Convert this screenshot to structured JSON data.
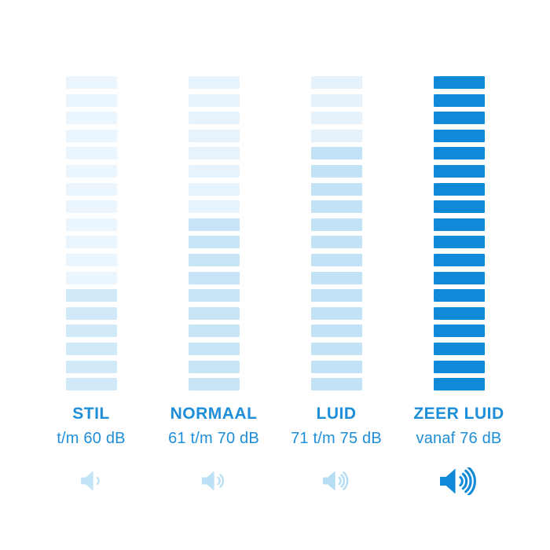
{
  "title": "Geluidsniveau schaal (volume infographic)",
  "accent_color": "#1189d9",
  "text_color": "#1e8ed9",
  "icon_light_color": "#bfe0f5",
  "chart_data": {
    "type": "bar",
    "subtype": "pictogram-volume-scale",
    "orientation": "vertical-stacked-segments",
    "segments_per_column": 18,
    "categories": [
      "STIL",
      "NORMAAL",
      "LUID",
      "ZEER LUID"
    ],
    "ranges": [
      "t/m 60 dB",
      "61 t/m 70 dB",
      "71 t/m 75 dB",
      "vanaf 76 dB"
    ],
    "values_filled_segments": [
      6,
      10,
      14,
      18
    ],
    "columns": [
      {
        "label": "STIL",
        "range": "t/m 60 dB",
        "total_bars": 18,
        "filled_bars": 6,
        "empty_color": "#eaf5fd",
        "filled_color": "#d0e9f8",
        "icon": "speaker-1-wave",
        "icon_waves": 1,
        "icon_color": "#c3e3f6",
        "icon_size": "small"
      },
      {
        "label": "NORMAAL",
        "range": "61 t/m 70 dB",
        "total_bars": 18,
        "filled_bars": 10,
        "empty_color": "#e7f3fc",
        "filled_color": "#c7e5f7",
        "icon": "speaker-2-waves",
        "icon_waves": 2,
        "icon_color": "#bce0f5",
        "icon_size": "small"
      },
      {
        "label": "LUID",
        "range": "71 t/m 75 dB",
        "total_bars": 18,
        "filled_bars": 14,
        "empty_color": "#e5f2fc",
        "filled_color": "#c2e2f6",
        "icon": "speaker-3-waves",
        "icon_waves": 3,
        "icon_color": "#b7ddf4",
        "icon_size": "small"
      },
      {
        "label": "ZEER LUID",
        "range": "vanaf 76 dB",
        "total_bars": 18,
        "filled_bars": 18,
        "empty_color": "#1189d9",
        "filled_color": "#1189d9",
        "icon": "speaker-4-waves",
        "icon_waves": 4,
        "icon_color": "#1189d9",
        "icon_size": "large"
      }
    ],
    "legend_position": "none",
    "grid": false
  }
}
